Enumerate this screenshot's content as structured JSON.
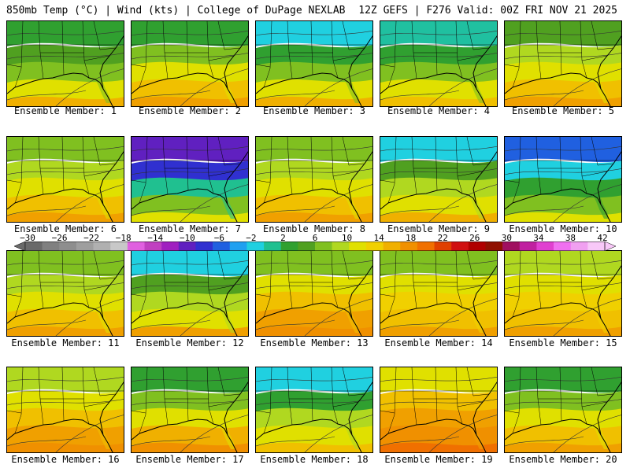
{
  "header": {
    "left": "850mb Temp (°C) | Wind (kts) | College of DuPage NEXLAB",
    "right": "12Z GEFS | F276 Valid: 00Z FRI NOV 21 2025"
  },
  "colorbar": {
    "labels": [
      "−30",
      "−26",
      "−22",
      "−18",
      "−14",
      "−10",
      "−6",
      "−2",
      "2",
      "6",
      "10",
      "14",
      "18",
      "22",
      "26",
      "30",
      "34",
      "38",
      "42"
    ],
    "colors": [
      "#6a6a6a",
      "#808080",
      "#8e8e8e",
      "#9e9e9e",
      "#b0b0b0",
      "#c8c8c8",
      "#e060e0",
      "#c040c0",
      "#a020c0",
      "#6020c0",
      "#3030d0",
      "#2060e0",
      "#20a0f0",
      "#20d0e0",
      "#20c090",
      "#30a030",
      "#50a020",
      "#80c020",
      "#b0d820",
      "#e0e000",
      "#f0d000",
      "#f0b000",
      "#f09000",
      "#f07000",
      "#e04000",
      "#d01010",
      "#b00000",
      "#901000",
      "#a01060",
      "#c020a0",
      "#e040d0",
      "#f070f0",
      "#f0a0f0",
      "#f8c8f8"
    ]
  },
  "panels": [
    {
      "label": "Ensemble Member: 1",
      "colors": [
        "#30a030",
        "#50a020",
        "#80c020",
        "#e0e000",
        "#f0b000"
      ]
    },
    {
      "label": "Ensemble Member: 2",
      "colors": [
        "#30a030",
        "#80c020",
        "#e0e000",
        "#f0c000",
        "#f0a000"
      ]
    },
    {
      "label": "Ensemble Member: 3",
      "colors": [
        "#20d0e0",
        "#30a030",
        "#80c020",
        "#e0e000",
        "#f0b000"
      ]
    },
    {
      "label": "Ensemble Member: 4",
      "colors": [
        "#20c0a0",
        "#30a030",
        "#80c020",
        "#e0e000",
        "#f0c000"
      ]
    },
    {
      "label": "Ensemble Member: 5",
      "colors": [
        "#50a020",
        "#b0d820",
        "#e0e000",
        "#f0c000",
        "#f0a000"
      ]
    },
    {
      "label": "Ensemble Member: 6",
      "colors": [
        "#80c020",
        "#b0d820",
        "#e0e000",
        "#f0c000",
        "#f0a000"
      ]
    },
    {
      "label": "Ensemble Member: 7",
      "colors": [
        "#6020c0",
        "#3030d0",
        "#20c090",
        "#80c020",
        "#e0e000"
      ]
    },
    {
      "label": "Ensemble Member: 8",
      "colors": [
        "#80c020",
        "#b0d820",
        "#e0e000",
        "#f0c000",
        "#f0a000"
      ]
    },
    {
      "label": "Ensemble Member: 9",
      "colors": [
        "#20d0e0",
        "#50a020",
        "#b0d820",
        "#e0e000",
        "#f0b000"
      ]
    },
    {
      "label": "Ensemble Member: 10",
      "colors": [
        "#2060e0",
        "#20d0e0",
        "#30a030",
        "#80c020",
        "#e0e000"
      ]
    },
    {
      "label": "Ensemble Member: 11",
      "colors": [
        "#80c020",
        "#b0d820",
        "#e0e000",
        "#f0c000",
        "#f0a000"
      ]
    },
    {
      "label": "Ensemble Member: 12",
      "colors": [
        "#20d0e0",
        "#50a020",
        "#b0d820",
        "#e0e000",
        "#f0a000"
      ]
    },
    {
      "label": "Ensemble Member: 13",
      "colors": [
        "#80c020",
        "#e0e000",
        "#f0c000",
        "#f0a000",
        "#f09000"
      ]
    },
    {
      "label": "Ensemble Member: 14",
      "colors": [
        "#80c020",
        "#e0e000",
        "#f0d000",
        "#f0c000",
        "#f0a000"
      ]
    },
    {
      "label": "Ensemble Member: 15",
      "colors": [
        "#b0d820",
        "#e0e000",
        "#f0d000",
        "#f0c000",
        "#f0a000"
      ]
    },
    {
      "label": "Ensemble Member: 16",
      "colors": [
        "#b0d820",
        "#e0e000",
        "#f0c000",
        "#f0a000",
        "#f09000"
      ]
    },
    {
      "label": "Ensemble Member: 17",
      "colors": [
        "#30a030",
        "#80c020",
        "#e0e000",
        "#f0b000",
        "#f09000"
      ]
    },
    {
      "label": "Ensemble Member: 18",
      "colors": [
        "#20d0e0",
        "#30a030",
        "#b0d820",
        "#e0e000",
        "#f0c000"
      ]
    },
    {
      "label": "Ensemble Member: 19",
      "colors": [
        "#e0e000",
        "#f0c000",
        "#f0a000",
        "#f09000",
        "#f07000"
      ]
    },
    {
      "label": "Ensemble Member: 20",
      "colors": [
        "#30a030",
        "#80c020",
        "#e0e000",
        "#f0c000",
        "#f0a000"
      ]
    }
  ]
}
